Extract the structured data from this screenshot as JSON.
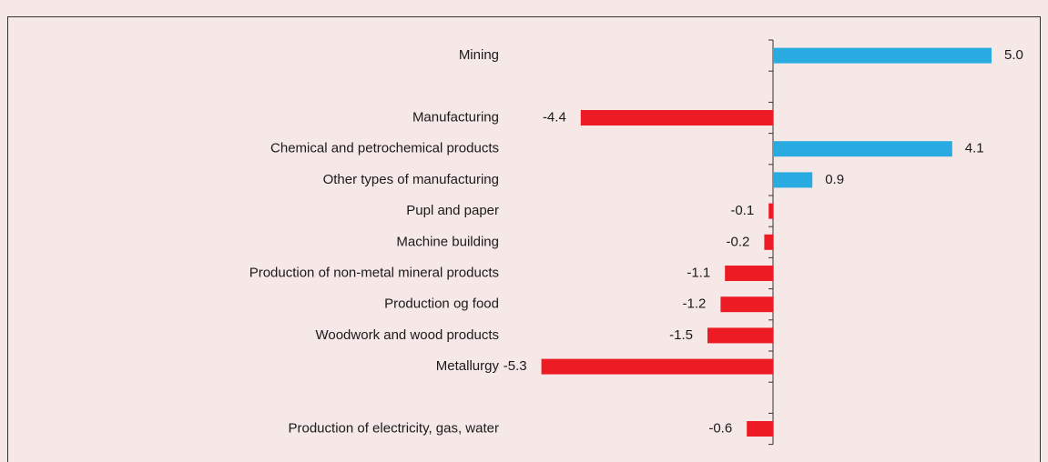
{
  "chart_data": {
    "type": "bar",
    "orientation": "horizontal",
    "categories": [
      "Mining",
      null,
      "Manufacturing",
      "Chemical and petrochemical products",
      "Other types of manufacturing",
      "Pupl and paper",
      "Machine building",
      "Production of non-metal mineral products",
      "Production og food",
      "Woodwork and wood products",
      "Metallurgy",
      null,
      "Production of electricity, gas, water"
    ],
    "values": [
      5.0,
      null,
      -4.4,
      4.1,
      0.9,
      -0.1,
      -0.2,
      -1.1,
      -1.2,
      -1.5,
      -5.3,
      null,
      -0.6
    ],
    "value_labels": [
      "5.0",
      null,
      "-4.4",
      "4.1",
      "0.9",
      "-0.1",
      "-0.2",
      "-1.1",
      "-1.2",
      "-1.5",
      "-5.3",
      null,
      "-0.6"
    ],
    "positive_color": "#29abe2",
    "negative_color": "#ed1c24",
    "xlim": [
      -6,
      6
    ]
  }
}
